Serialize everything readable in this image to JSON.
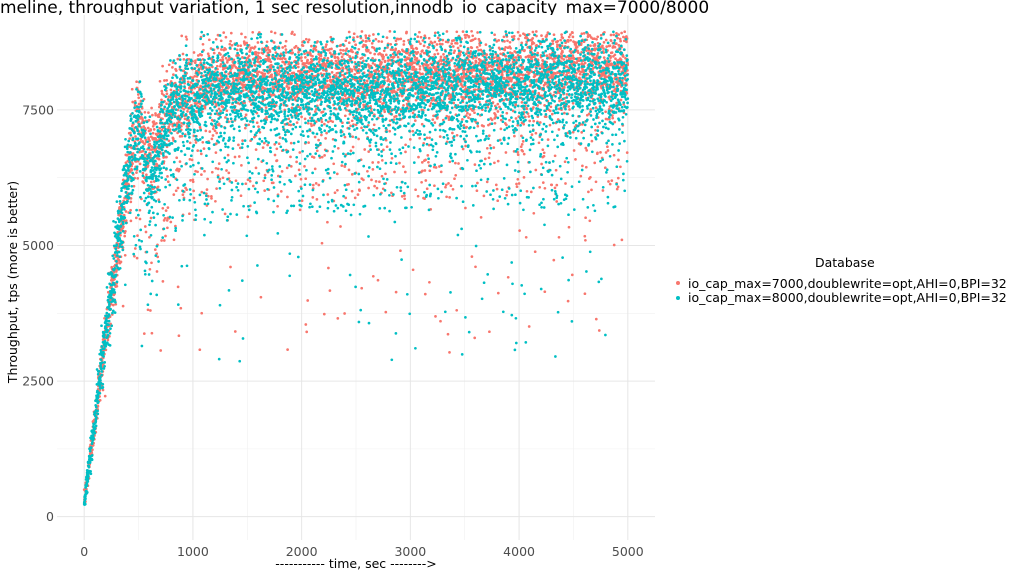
{
  "chart_data": {
    "type": "scatter",
    "title": "meline, throughput variation, 1 sec resolution,innodb_io_capacity_max=7000/8000",
    "xlabel": "----------- time, sec -------->",
    "ylabel": "Throughput, tps (more is better)",
    "xlim": [
      -250,
      5250
    ],
    "ylim": [
      -430,
      9250
    ],
    "x_ticks": [
      0,
      1000,
      2000,
      3000,
      4000,
      5000
    ],
    "y_ticks": [
      0,
      2500,
      5000,
      7500
    ],
    "x_tick_labels": [
      "0",
      "1000",
      "2000",
      "3000",
      "4000",
      "5000"
    ],
    "y_tick_labels": [
      "0",
      "2500",
      "5000",
      "7500"
    ],
    "grid": true,
    "legend_position": "right",
    "legend_title": "Database",
    "series": [
      {
        "name": "io_cap_max=7000,doublewrite=opt,AHI=0,BPI=32",
        "color": "#F8766D",
        "profile": [
          [
            0,
            250
          ],
          [
            100,
            1800
          ],
          [
            200,
            3400
          ],
          [
            300,
            4800
          ],
          [
            400,
            6200
          ],
          [
            500,
            7400
          ],
          [
            600,
            6700
          ],
          [
            700,
            7200
          ],
          [
            800,
            7600
          ],
          [
            1000,
            7850
          ],
          [
            1200,
            8000
          ],
          [
            1500,
            8150
          ],
          [
            2000,
            8100
          ],
          [
            2500,
            8100
          ],
          [
            3000,
            8150
          ],
          [
            3500,
            8150
          ],
          [
            4000,
            8200
          ],
          [
            4500,
            8200
          ],
          [
            5000,
            8300
          ]
        ],
        "spread": 380,
        "outlier_min": 3000,
        "x_range": [
          0,
          5000
        ]
      },
      {
        "name": "io_cap_max=8000,doublewrite=opt,AHI=0,BPI=32",
        "color": "#00BFC4",
        "profile": [
          [
            0,
            250
          ],
          [
            100,
            1800
          ],
          [
            200,
            3500
          ],
          [
            300,
            4900
          ],
          [
            400,
            6400
          ],
          [
            500,
            7300
          ],
          [
            600,
            6000
          ],
          [
            700,
            6900
          ],
          [
            800,
            7500
          ],
          [
            1000,
            7700
          ],
          [
            1200,
            7800
          ],
          [
            1500,
            7850
          ],
          [
            2000,
            7850
          ],
          [
            2500,
            7850
          ],
          [
            3000,
            7900
          ],
          [
            3500,
            7950
          ],
          [
            4000,
            7950
          ],
          [
            4500,
            7950
          ],
          [
            5000,
            7950
          ]
        ],
        "spread": 430,
        "outlier_min": 2850,
        "x_range": [
          0,
          5000
        ]
      }
    ]
  }
}
